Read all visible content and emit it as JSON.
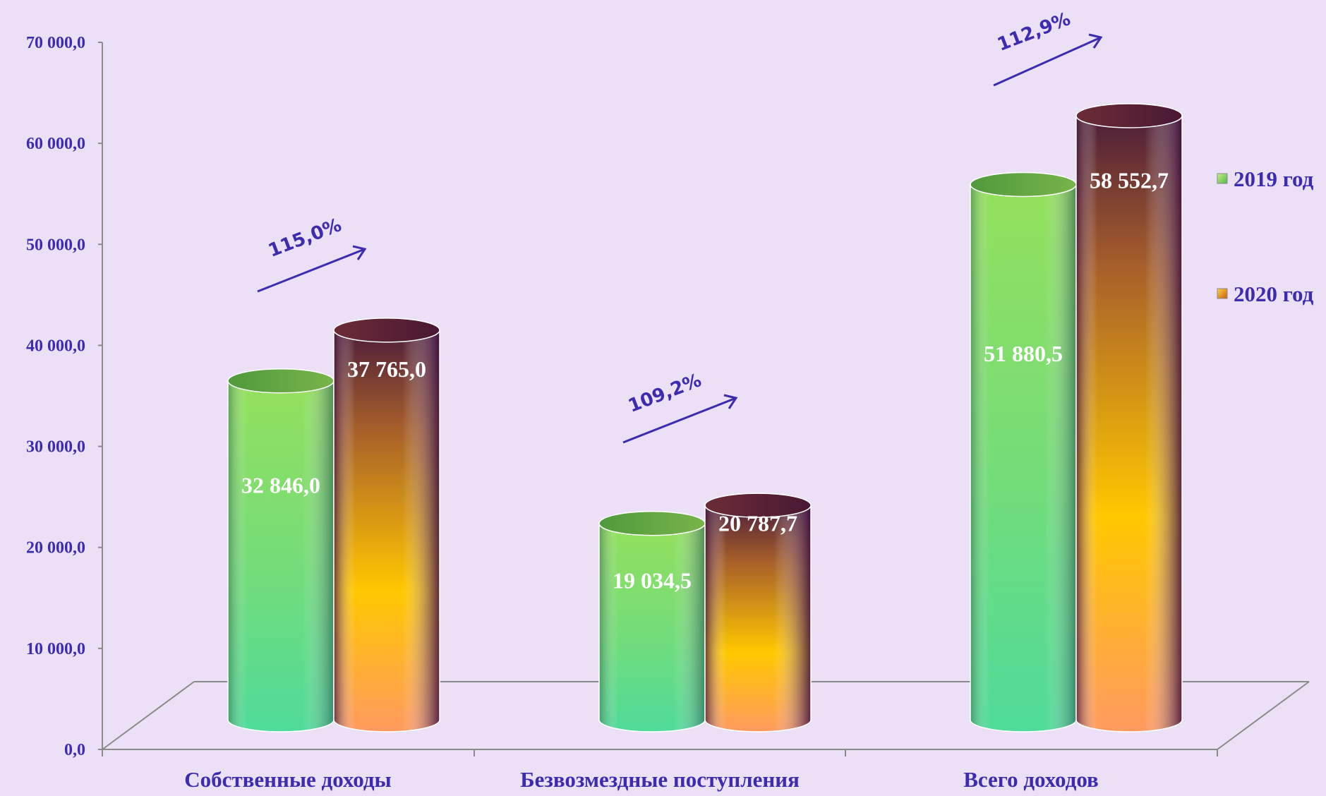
{
  "colors": {
    "background": "#ebe0f6",
    "axis": "#8a8a8a",
    "text": "#3d2bb0",
    "arrow": "#3d2bb0",
    "value_text": "#ffffff"
  },
  "chart_data": {
    "type": "bar",
    "style": "3d-cylinder",
    "title": "",
    "xlabel": "",
    "ylabel": "",
    "ylim": [
      0,
      70000
    ],
    "yticks": [
      "0,0",
      "10 000,0",
      "20 000,0",
      "30 000,0",
      "40 000,0",
      "50 000,0",
      "60 000,0",
      "70 000,0"
    ],
    "grid": false,
    "legend_position": "right",
    "categories": [
      "Собственные доходы",
      "Безвозмездные поступления",
      "Всего доходов"
    ],
    "series": [
      {
        "name": "2019 год",
        "values": [
          32846.0,
          19034.5,
          51880.5
        ],
        "labels": [
          "32 846,0",
          "19 034,5",
          "51 880,5"
        ],
        "color": "#6fd66a"
      },
      {
        "name": "2020 год",
        "values": [
          37765.0,
          20787.7,
          58552.7
        ],
        "labels": [
          "37 765,0",
          "20 787,7",
          "58 552,7"
        ],
        "color": "#f5b21a"
      }
    ],
    "annotations": [
      "115,0%",
      "109,2%",
      "112,9%"
    ]
  }
}
